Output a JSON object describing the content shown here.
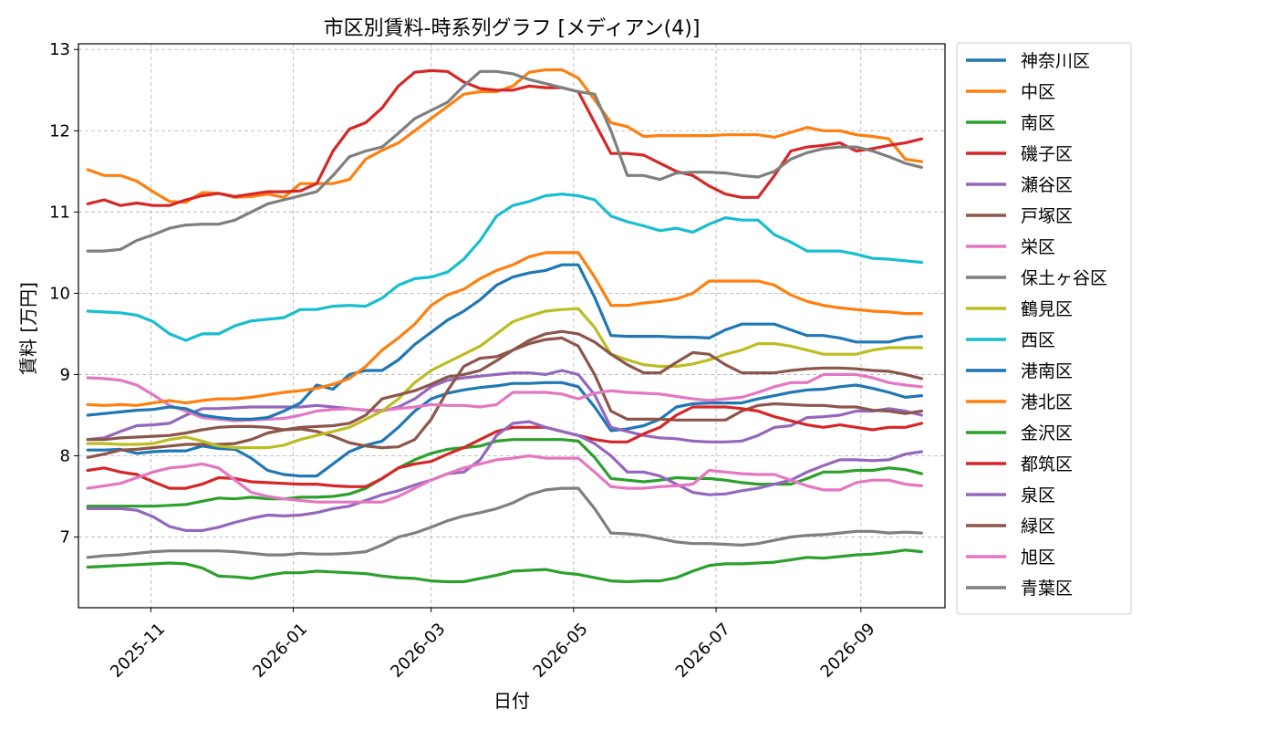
{
  "chart_data": {
    "type": "line",
    "title": "市区別賃料-時系列グラフ [メディアン(4)]",
    "xlabel": "日付",
    "ylabel": "賃料 [万円]",
    "x_range": [
      "2025-10-01",
      "2026-10-07"
    ],
    "ylim": [
      6.13,
      13.07
    ],
    "x_ticks": [
      "2025-11",
      "2026-01",
      "2026-03",
      "2026-05",
      "2026-07",
      "2026-09"
    ],
    "y_ticks": [
      "7",
      "8",
      "9",
      "10",
      "11",
      "12",
      "13"
    ],
    "grid": true,
    "legend_position": "outside-right",
    "dates": [
      "2025-10-05",
      "2025-10-12",
      "2025-10-19",
      "2025-10-26",
      "2025-11-02",
      "2025-11-09",
      "2025-11-16",
      "2025-11-23",
      "2025-11-30",
      "2025-12-07",
      "2025-12-14",
      "2025-12-21",
      "2025-12-28",
      "2026-01-04",
      "2026-01-11",
      "2026-01-18",
      "2026-01-25",
      "2026-02-01",
      "2026-02-08",
      "2026-02-15",
      "2026-02-22",
      "2026-03-01",
      "2026-03-08",
      "2026-03-15",
      "2026-03-22",
      "2026-03-29",
      "2026-04-05",
      "2026-04-12",
      "2026-04-19",
      "2026-04-26",
      "2026-05-03",
      "2026-05-10",
      "2026-05-17",
      "2026-05-24",
      "2026-05-31",
      "2026-06-07",
      "2026-06-14",
      "2026-06-21",
      "2026-06-28",
      "2026-07-05",
      "2026-07-12",
      "2026-07-19",
      "2026-07-26",
      "2026-08-02",
      "2026-08-09",
      "2026-08-16",
      "2026-08-23",
      "2026-08-30",
      "2026-09-06",
      "2026-09-13",
      "2026-09-20",
      "2026-09-27"
    ],
    "series": [
      {
        "name": "神奈川区",
        "color": "#1f77b4",
        "values": [
          8.07,
          8.07,
          8.08,
          8.03,
          8.05,
          8.06,
          8.06,
          8.12,
          8.09,
          8.08,
          7.97,
          7.82,
          7.77,
          7.75,
          7.75,
          7.9,
          8.05,
          8.13,
          8.18,
          8.35,
          8.55,
          8.7,
          8.77,
          8.81,
          8.84,
          8.86,
          8.89,
          8.89,
          8.9,
          8.9,
          8.85,
          8.6,
          8.31,
          8.33,
          8.37,
          8.45,
          8.6,
          8.64,
          8.65,
          8.65,
          8.65,
          8.7,
          8.74,
          8.78,
          8.81,
          8.82,
          8.85,
          8.87,
          8.83,
          8.78,
          8.72,
          8.74
        ]
      },
      {
        "name": "中区",
        "color": "#ff7f0e",
        "values": [
          11.52,
          11.45,
          11.45,
          11.38,
          11.25,
          11.13,
          11.12,
          11.24,
          11.23,
          11.18,
          11.19,
          11.22,
          11.18,
          11.35,
          11.35,
          11.35,
          11.4,
          11.65,
          11.76,
          11.85,
          12.0,
          12.15,
          12.3,
          12.45,
          12.48,
          12.48,
          12.55,
          12.72,
          12.75,
          12.75,
          12.65,
          12.38,
          12.1,
          12.05,
          11.93,
          11.94,
          11.94,
          11.94,
          11.94,
          11.95,
          11.95,
          11.95,
          11.92,
          11.98,
          12.04,
          12.0,
          12.0,
          11.95,
          11.93,
          11.9,
          11.65,
          11.62
        ]
      },
      {
        "name": "南区",
        "color": "#2ca02c",
        "values": [
          6.63,
          6.64,
          6.65,
          6.66,
          6.67,
          6.68,
          6.67,
          6.62,
          6.52,
          6.51,
          6.49,
          6.53,
          6.56,
          6.56,
          6.58,
          6.57,
          6.56,
          6.55,
          6.52,
          6.5,
          6.49,
          6.46,
          6.45,
          6.45,
          6.49,
          6.53,
          6.58,
          6.59,
          6.6,
          6.56,
          6.54,
          6.5,
          6.46,
          6.45,
          6.46,
          6.46,
          6.5,
          6.58,
          6.65,
          6.67,
          6.67,
          6.68,
          6.69,
          6.72,
          6.75,
          6.74,
          6.76,
          6.78,
          6.79,
          6.81,
          6.84,
          6.82
        ]
      },
      {
        "name": "磯子区",
        "color": "#d62728",
        "values": [
          11.1,
          11.15,
          11.08,
          11.11,
          11.08,
          11.08,
          11.15,
          11.2,
          11.23,
          11.19,
          11.22,
          11.25,
          11.25,
          11.26,
          11.35,
          11.75,
          12.02,
          12.1,
          12.28,
          12.55,
          12.72,
          12.74,
          12.73,
          12.6,
          12.52,
          12.5,
          12.5,
          12.55,
          12.53,
          12.53,
          12.48,
          12.1,
          11.72,
          11.72,
          11.7,
          11.6,
          11.5,
          11.45,
          11.32,
          11.22,
          11.18,
          11.18,
          11.45,
          11.75,
          11.8,
          11.82,
          11.85,
          11.75,
          11.78,
          11.82,
          11.85,
          11.9
        ]
      },
      {
        "name": "瀬谷区",
        "color": "#9467bd",
        "values": [
          8.2,
          8.22,
          8.3,
          8.37,
          8.38,
          8.4,
          8.5,
          8.58,
          8.58,
          8.59,
          8.6,
          8.6,
          8.6,
          8.6,
          8.62,
          8.6,
          8.58,
          8.56,
          8.55,
          8.6,
          8.7,
          8.85,
          8.93,
          8.96,
          8.98,
          9.0,
          9.02,
          9.02,
          9.0,
          9.05,
          9.0,
          8.75,
          8.35,
          8.3,
          8.25,
          8.22,
          8.21,
          8.18,
          8.17,
          8.17,
          8.18,
          8.25,
          8.35,
          8.37,
          8.47,
          8.48,
          8.5,
          8.55,
          8.55,
          8.58,
          8.55,
          8.5
        ]
      },
      {
        "name": "戸塚区",
        "color": "#8c564b",
        "values": [
          7.98,
          8.02,
          8.07,
          8.08,
          8.1,
          8.12,
          8.14,
          8.14,
          8.14,
          8.15,
          8.2,
          8.28,
          8.32,
          8.33,
          8.3,
          8.24,
          8.16,
          8.12,
          8.1,
          8.11,
          8.2,
          8.45,
          8.8,
          9.1,
          9.2,
          9.22,
          9.3,
          9.38,
          9.43,
          9.45,
          9.35,
          9.0,
          8.55,
          8.45,
          8.45,
          8.45,
          8.44,
          8.44,
          8.44,
          8.44,
          8.55,
          8.62,
          8.64,
          8.63,
          8.62,
          8.62,
          8.6,
          8.6,
          8.56,
          8.55,
          8.52,
          8.55
        ]
      },
      {
        "name": "栄区",
        "color": "#e377c2",
        "values": [
          8.96,
          8.95,
          8.93,
          8.87,
          8.75,
          8.62,
          8.55,
          8.47,
          8.45,
          8.43,
          8.44,
          8.45,
          8.46,
          8.5,
          8.55,
          8.57,
          8.58,
          8.56,
          8.56,
          8.58,
          8.6,
          8.63,
          8.62,
          8.62,
          8.6,
          8.63,
          8.78,
          8.78,
          8.78,
          8.76,
          8.7,
          8.77,
          8.8,
          8.78,
          8.77,
          8.76,
          8.73,
          8.7,
          8.68,
          8.7,
          8.72,
          8.78,
          8.85,
          8.9,
          8.9,
          9.0,
          9.0,
          9.0,
          8.96,
          8.9,
          8.87,
          8.85
        ]
      },
      {
        "name": "保土ヶ谷区",
        "color": "#7f7f7f",
        "values": [
          10.52,
          10.52,
          10.54,
          10.65,
          10.72,
          10.8,
          10.84,
          10.85,
          10.85,
          10.9,
          11.0,
          11.1,
          11.15,
          11.2,
          11.25,
          11.45,
          11.68,
          11.75,
          11.8,
          11.97,
          12.15,
          12.25,
          12.35,
          12.55,
          12.73,
          12.73,
          12.7,
          12.63,
          12.58,
          12.53,
          12.48,
          12.45,
          12.0,
          11.45,
          11.45,
          11.4,
          11.48,
          11.49,
          11.49,
          11.48,
          11.45,
          11.43,
          11.5,
          11.65,
          11.73,
          11.78,
          11.8,
          11.8,
          11.75,
          11.68,
          11.6,
          11.55
        ]
      },
      {
        "name": "鶴見区",
        "color": "#bcbd22",
        "values": [
          8.15,
          8.15,
          8.14,
          8.14,
          8.15,
          8.2,
          8.23,
          8.18,
          8.12,
          8.1,
          8.1,
          8.1,
          8.13,
          8.2,
          8.25,
          8.3,
          8.35,
          8.45,
          8.55,
          8.7,
          8.9,
          9.05,
          9.15,
          9.25,
          9.35,
          9.5,
          9.65,
          9.72,
          9.78,
          9.8,
          9.81,
          9.58,
          9.25,
          9.18,
          9.12,
          9.1,
          9.1,
          9.13,
          9.18,
          9.25,
          9.3,
          9.38,
          9.38,
          9.35,
          9.3,
          9.25,
          9.25,
          9.25,
          9.3,
          9.33,
          9.33,
          9.33
        ]
      },
      {
        "name": "西区",
        "color": "#17becf",
        "values": [
          9.78,
          9.77,
          9.76,
          9.73,
          9.65,
          9.5,
          9.42,
          9.5,
          9.5,
          9.6,
          9.66,
          9.68,
          9.7,
          9.8,
          9.8,
          9.84,
          9.85,
          9.84,
          9.94,
          10.1,
          10.18,
          10.2,
          10.26,
          10.42,
          10.65,
          10.95,
          11.08,
          11.13,
          11.2,
          11.22,
          11.2,
          11.15,
          10.95,
          10.88,
          10.83,
          10.77,
          10.8,
          10.75,
          10.85,
          10.93,
          10.9,
          10.9,
          10.72,
          10.63,
          10.52,
          10.52,
          10.52,
          10.48,
          10.43,
          10.42,
          10.4,
          10.38
        ]
      },
      {
        "name": "港南区",
        "color": "#1f77b4",
        "values": [
          8.5,
          8.52,
          8.54,
          8.56,
          8.57,
          8.6,
          8.58,
          8.5,
          8.47,
          8.45,
          8.45,
          8.47,
          8.55,
          8.65,
          8.87,
          8.82,
          9.0,
          9.05,
          9.05,
          9.18,
          9.37,
          9.52,
          9.67,
          9.78,
          9.92,
          10.1,
          10.2,
          10.25,
          10.28,
          10.35,
          10.35,
          9.95,
          9.48,
          9.47,
          9.47,
          9.47,
          9.46,
          9.46,
          9.45,
          9.55,
          9.62,
          9.62,
          9.62,
          9.55,
          9.48,
          9.48,
          9.45,
          9.4,
          9.4,
          9.4,
          9.45,
          9.47
        ]
      },
      {
        "name": "港北区",
        "color": "#ff7f0e",
        "values": [
          8.63,
          8.62,
          8.63,
          8.62,
          8.65,
          8.68,
          8.65,
          8.68,
          8.7,
          8.7,
          8.72,
          8.75,
          8.78,
          8.8,
          8.83,
          8.88,
          8.95,
          9.1,
          9.3,
          9.45,
          9.62,
          9.85,
          9.98,
          10.05,
          10.18,
          10.28,
          10.35,
          10.45,
          10.5,
          10.5,
          10.5,
          10.2,
          9.85,
          9.85,
          9.88,
          9.9,
          9.93,
          10.0,
          10.15,
          10.15,
          10.15,
          10.15,
          10.1,
          9.98,
          9.9,
          9.85,
          9.82,
          9.8,
          9.78,
          9.77,
          9.75,
          9.75
        ]
      },
      {
        "name": "金沢区",
        "color": "#2ca02c",
        "values": [
          7.38,
          7.38,
          7.38,
          7.38,
          7.38,
          7.39,
          7.4,
          7.44,
          7.48,
          7.47,
          7.49,
          7.47,
          7.47,
          7.49,
          7.49,
          7.5,
          7.53,
          7.6,
          7.72,
          7.85,
          7.95,
          8.03,
          8.08,
          8.1,
          8.12,
          8.18,
          8.2,
          8.2,
          8.2,
          8.2,
          8.18,
          7.98,
          7.72,
          7.7,
          7.68,
          7.7,
          7.73,
          7.72,
          7.72,
          7.7,
          7.67,
          7.65,
          7.65,
          7.65,
          7.72,
          7.8,
          7.8,
          7.82,
          7.82,
          7.85,
          7.83,
          7.78
        ]
      },
      {
        "name": "都筑区",
        "color": "#d62728",
        "values": [
          7.82,
          7.85,
          7.8,
          7.77,
          7.68,
          7.6,
          7.6,
          7.65,
          7.73,
          7.72,
          7.68,
          7.67,
          7.66,
          7.65,
          7.65,
          7.63,
          7.62,
          7.62,
          7.72,
          7.85,
          7.9,
          7.93,
          8.02,
          8.1,
          8.2,
          8.3,
          8.35,
          8.35,
          8.35,
          8.3,
          8.25,
          8.2,
          8.17,
          8.17,
          8.27,
          8.35,
          8.5,
          8.6,
          8.6,
          8.6,
          8.58,
          8.55,
          8.48,
          8.43,
          8.38,
          8.35,
          8.38,
          8.35,
          8.32,
          8.35,
          8.35,
          8.4
        ]
      },
      {
        "name": "泉区",
        "color": "#9467bd",
        "values": [
          7.35,
          7.35,
          7.35,
          7.33,
          7.25,
          7.13,
          7.08,
          7.08,
          7.12,
          7.18,
          7.23,
          7.27,
          7.26,
          7.27,
          7.3,
          7.35,
          7.38,
          7.45,
          7.52,
          7.57,
          7.64,
          7.7,
          7.78,
          7.8,
          7.95,
          8.25,
          8.4,
          8.42,
          8.35,
          8.3,
          8.25,
          8.15,
          8.0,
          7.8,
          7.8,
          7.75,
          7.65,
          7.55,
          7.52,
          7.53,
          7.57,
          7.6,
          7.65,
          7.7,
          7.8,
          7.88,
          7.95,
          7.95,
          7.94,
          7.95,
          8.02,
          8.05
        ]
      },
      {
        "name": "緑区",
        "color": "#8c564b",
        "values": [
          8.2,
          8.2,
          8.22,
          8.23,
          8.24,
          8.25,
          8.28,
          8.32,
          8.35,
          8.36,
          8.36,
          8.35,
          8.32,
          8.35,
          8.36,
          8.37,
          8.4,
          8.5,
          8.7,
          8.75,
          8.8,
          8.88,
          8.97,
          9.0,
          9.05,
          9.17,
          9.3,
          9.42,
          9.5,
          9.53,
          9.5,
          9.4,
          9.25,
          9.12,
          9.02,
          9.02,
          9.15,
          9.27,
          9.25,
          9.12,
          9.02,
          9.02,
          9.02,
          9.05,
          9.07,
          9.08,
          9.08,
          9.07,
          9.05,
          9.04,
          9.0,
          8.95
        ]
      },
      {
        "name": "旭区",
        "color": "#e377c2",
        "values": [
          7.6,
          7.63,
          7.66,
          7.73,
          7.8,
          7.85,
          7.87,
          7.9,
          7.85,
          7.7,
          7.55,
          7.5,
          7.47,
          7.45,
          7.43,
          7.43,
          7.43,
          7.43,
          7.43,
          7.5,
          7.6,
          7.7,
          7.78,
          7.85,
          7.9,
          7.95,
          7.97,
          8.0,
          7.97,
          7.97,
          7.97,
          7.8,
          7.62,
          7.6,
          7.6,
          7.62,
          7.63,
          7.65,
          7.82,
          7.8,
          7.78,
          7.77,
          7.77,
          7.7,
          7.63,
          7.58,
          7.58,
          7.67,
          7.7,
          7.7,
          7.65,
          7.63
        ]
      },
      {
        "name": "青葉区",
        "color": "#7f7f7f",
        "values": [
          6.75,
          6.77,
          6.78,
          6.8,
          6.82,
          6.83,
          6.83,
          6.83,
          6.83,
          6.82,
          6.8,
          6.78,
          6.78,
          6.8,
          6.79,
          6.79,
          6.8,
          6.82,
          6.9,
          7.0,
          7.05,
          7.12,
          7.2,
          7.26,
          7.3,
          7.35,
          7.42,
          7.52,
          7.58,
          7.6,
          7.6,
          7.35,
          7.05,
          7.04,
          7.02,
          6.98,
          6.94,
          6.92,
          6.92,
          6.91,
          6.9,
          6.92,
          6.96,
          7.0,
          7.02,
          7.03,
          7.05,
          7.07,
          7.07,
          7.05,
          7.06,
          7.05
        ]
      }
    ]
  }
}
